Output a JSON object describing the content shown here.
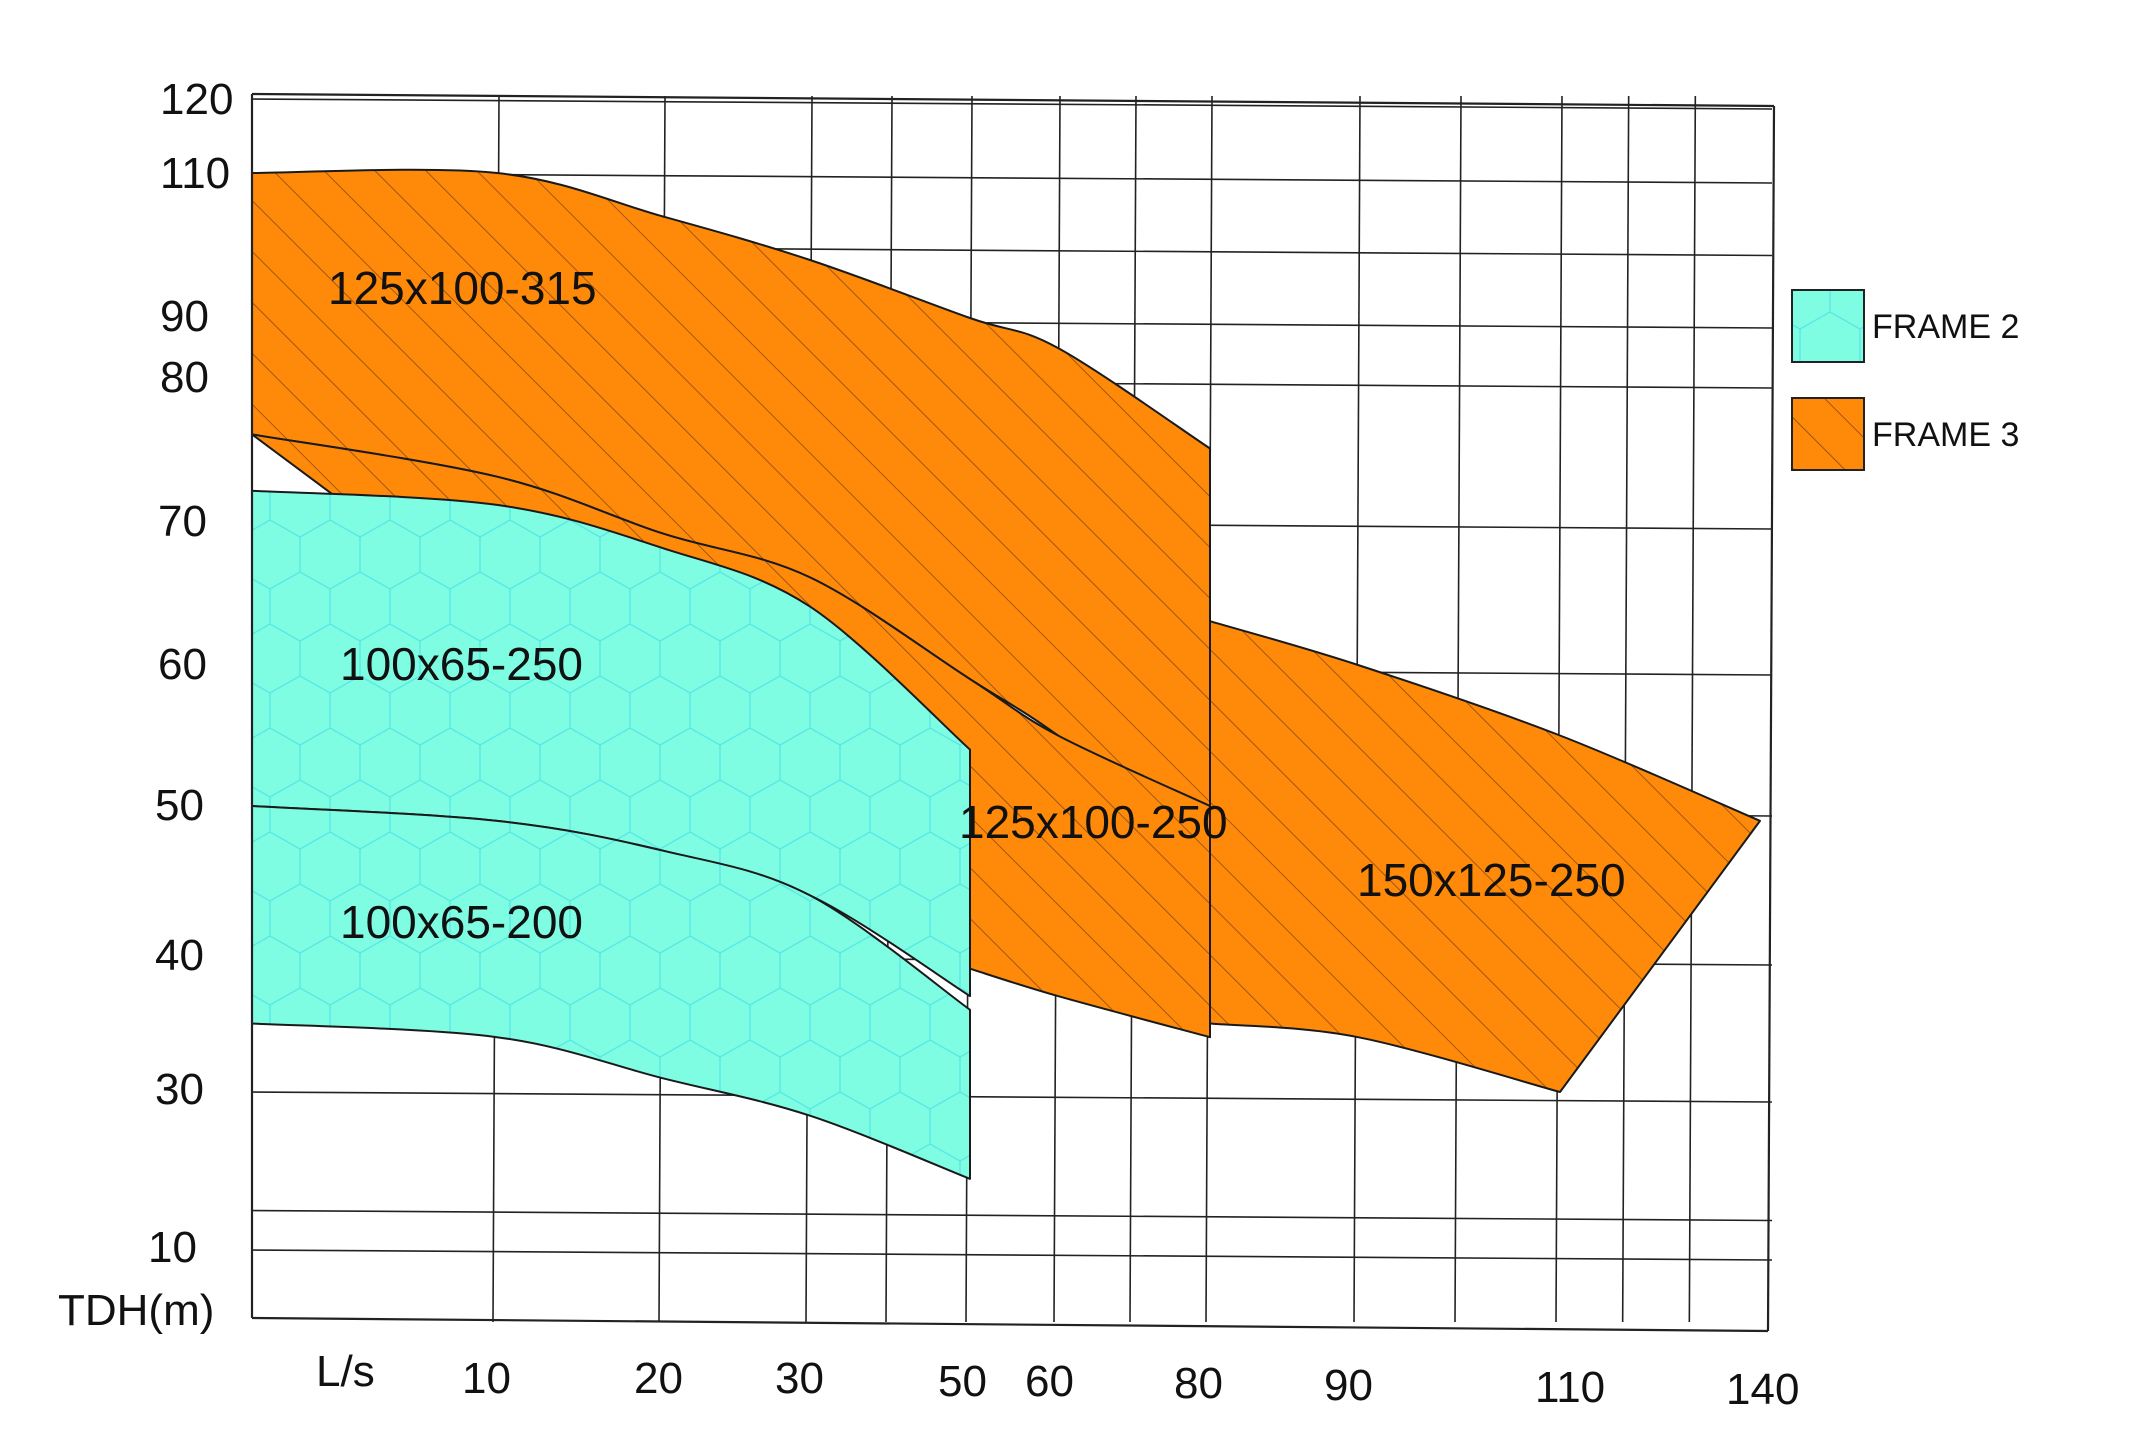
{
  "chart_data": {
    "type": "area",
    "title": "",
    "xlabel": "L/s",
    "ylabel": "TDH(m)",
    "x_ticks": [
      "10",
      "20",
      "30",
      "50",
      "60",
      "80",
      "90",
      "110",
      "140"
    ],
    "y_ticks": [
      "120",
      "110",
      "90",
      "80",
      "70",
      "60",
      "50",
      "40",
      "30",
      "10"
    ],
    "grid": true,
    "legend_position": "right",
    "legend": [
      {
        "name": "FRAME 2",
        "color": "#7ffde3",
        "pattern": "hexagon"
      },
      {
        "name": "FRAME 3",
        "color": "#ff8a0a",
        "pattern": "hatch"
      }
    ],
    "regions": [
      {
        "label": "125x100-315",
        "frame": "FRAME 3",
        "upper_curve": [
          [
            0,
            110
          ],
          [
            10,
            110
          ],
          [
            20,
            104
          ],
          [
            30,
            98
          ],
          [
            50,
            90
          ],
          [
            60,
            85
          ],
          [
            80,
            75
          ]
        ],
        "lower_curve": [
          [
            0,
            76
          ],
          [
            10,
            73
          ],
          [
            20,
            69
          ],
          [
            30,
            66
          ],
          [
            50,
            59
          ],
          [
            60,
            55
          ],
          [
            80,
            47
          ]
        ]
      },
      {
        "label": "125x100-250",
        "frame": "FRAME 3",
        "upper_curve": [
          [
            0,
            76
          ],
          [
            10,
            73
          ],
          [
            20,
            69
          ],
          [
            30,
            66
          ],
          [
            50,
            59
          ],
          [
            60,
            55
          ],
          [
            80,
            50
          ]
        ],
        "lower_curve": [
          [
            50,
            39
          ],
          [
            60,
            37
          ],
          [
            80,
            34
          ]
        ]
      },
      {
        "label": "150x125-250",
        "frame": "FRAME 3",
        "upper_curve": [
          [
            80,
            63
          ],
          [
            90,
            60
          ],
          [
            110,
            55
          ],
          [
            140,
            49
          ]
        ],
        "lower_curve": [
          [
            80,
            35
          ],
          [
            90,
            34
          ],
          [
            110,
            30
          ]
        ]
      },
      {
        "label": "100x65-250",
        "frame": "FRAME 2",
        "upper_curve": [
          [
            0,
            72
          ],
          [
            10,
            71
          ],
          [
            20,
            68
          ],
          [
            30,
            64
          ],
          [
            50,
            54
          ]
        ],
        "lower_curve": [
          [
            0,
            50
          ],
          [
            10,
            49
          ],
          [
            20,
            47
          ],
          [
            30,
            44
          ],
          [
            50,
            37
          ]
        ]
      },
      {
        "label": "100x65-200",
        "frame": "FRAME 2",
        "upper_curve": [
          [
            0,
            50
          ],
          [
            10,
            49
          ],
          [
            20,
            47
          ],
          [
            30,
            44
          ],
          [
            50,
            36
          ]
        ],
        "lower_curve": [
          [
            0,
            35
          ],
          [
            10,
            34
          ],
          [
            20,
            31
          ],
          [
            30,
            27
          ],
          [
            50,
            19
          ]
        ]
      }
    ]
  }
}
